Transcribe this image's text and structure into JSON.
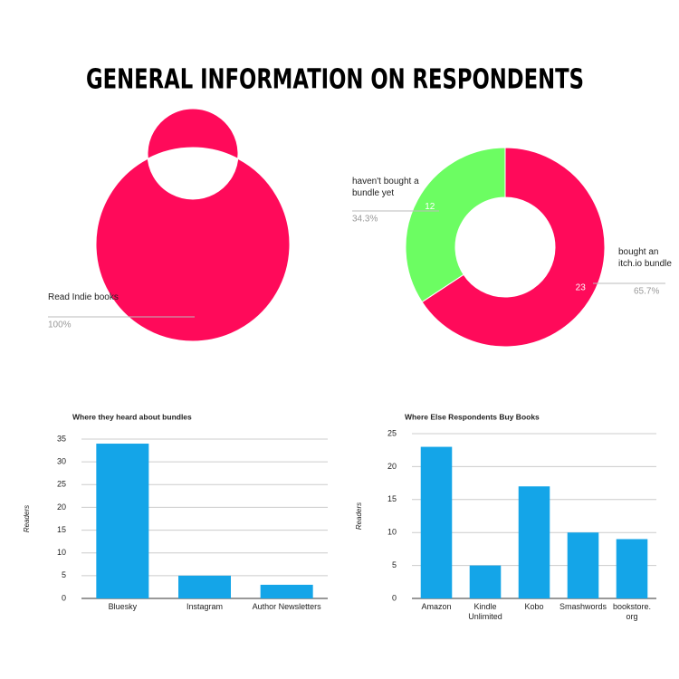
{
  "title": "GENERAL INFORMATION ON RESPONDENTS",
  "chart_data": [
    {
      "type": "donut",
      "categories": [
        "Read Indie books"
      ],
      "values": [
        100
      ],
      "value_labels": [
        "100%"
      ],
      "colors": [
        "#ff0a5a"
      ],
      "show_values": false
    },
    {
      "type": "donut",
      "categories": [
        "bought an itch.io bundle",
        "haven't bought a bundle yet"
      ],
      "values": [
        23,
        12
      ],
      "percent_labels": [
        "65.7%",
        "34.3%"
      ],
      "colors": [
        "#ff0a5a",
        "#6cfd62"
      ],
      "show_values": true
    },
    {
      "type": "bar",
      "title": "Where they heard about bundles",
      "y_label": "Readers",
      "categories": [
        "Bluesky",
        "Instagram",
        "Author Newsletters"
      ],
      "values": [
        34,
        5,
        3
      ],
      "color": "#14a5e8",
      "ylim": [
        0,
        35
      ],
      "yticks": [
        0,
        5,
        10,
        15,
        20,
        25,
        30,
        35
      ],
      "grid": true
    },
    {
      "type": "bar",
      "title": "Where Else Respondents Buy Books",
      "y_label": "Readers",
      "categories": [
        "Amazon",
        "Kindle Unlimited",
        "Kobo",
        "Smashwords",
        "bookstore. org"
      ],
      "values": [
        23,
        5,
        17,
        10,
        9
      ],
      "color": "#14a5e8",
      "ylim": [
        0,
        25
      ],
      "yticks": [
        0,
        5,
        10,
        15,
        20,
        25
      ],
      "grid": true
    }
  ]
}
